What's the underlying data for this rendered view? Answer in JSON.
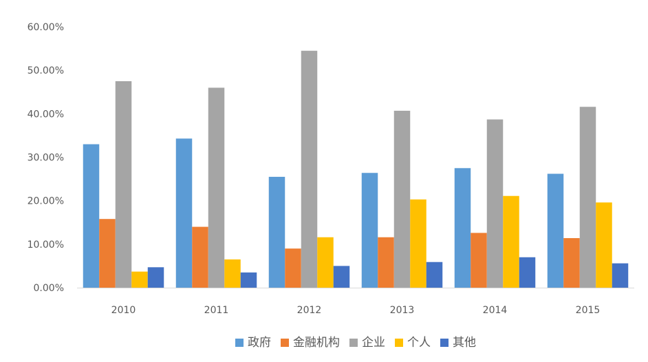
{
  "chart_data": {
    "type": "bar",
    "title": "",
    "xlabel": "",
    "ylabel": "",
    "categories": [
      "2010",
      "2011",
      "2012",
      "2013",
      "2014",
      "2015"
    ],
    "y_ticks": [
      "0.00%",
      "10.00%",
      "20.00%",
      "30.00%",
      "40.00%",
      "50.00%",
      "60.00%"
    ],
    "ylim": [
      0,
      60
    ],
    "grid": false,
    "legend_position": "bottom",
    "series": [
      {
        "name": "政府",
        "color": "#5B9BD5",
        "values": [
          33.0,
          34.3,
          25.5,
          26.4,
          27.5,
          26.2
        ]
      },
      {
        "name": "金融机构",
        "color": "#ED7D31",
        "values": [
          15.8,
          14.0,
          9.0,
          11.6,
          12.6,
          11.4
        ]
      },
      {
        "name": "企业",
        "color": "#A5A5A5",
        "values": [
          47.5,
          46.0,
          54.5,
          40.7,
          38.7,
          41.6
        ]
      },
      {
        "name": "个人",
        "color": "#FFC000",
        "values": [
          3.7,
          6.5,
          11.6,
          20.3,
          21.1,
          19.6
        ]
      },
      {
        "name": "其他",
        "color": "#4472C4",
        "values": [
          4.7,
          3.5,
          5.0,
          5.9,
          7.0,
          5.6
        ]
      }
    ]
  }
}
